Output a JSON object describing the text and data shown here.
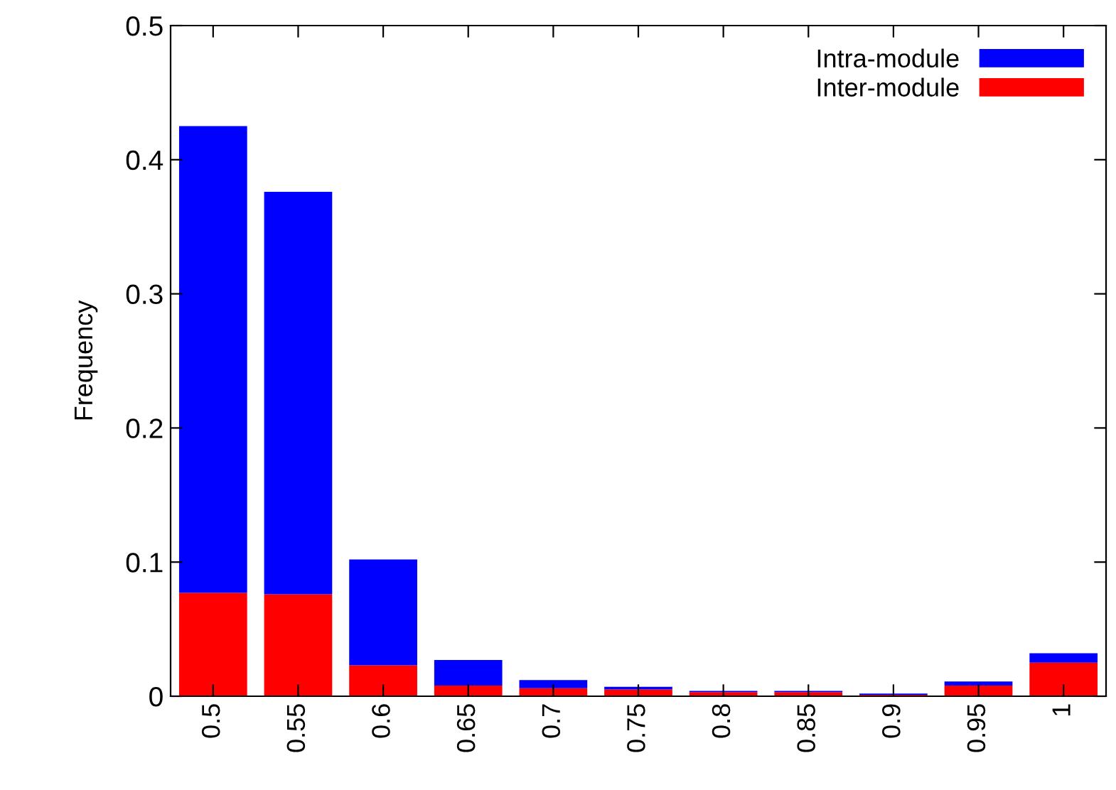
{
  "chart_data": {
    "type": "bar",
    "stacked": true,
    "ylabel": "Frequency",
    "categories": [
      "0.5",
      "0.55",
      "0.6",
      "0.65",
      "0.7",
      "0.75",
      "0.8",
      "0.85",
      "0.9",
      "0.95",
      "1"
    ],
    "series": [
      {
        "name": "Inter-module",
        "color": "#ff0000",
        "values": [
          0.077,
          0.076,
          0.023,
          0.008,
          0.006,
          0.005,
          0.003,
          0.003,
          0.001,
          0.008,
          0.025
        ]
      },
      {
        "name": "Intra-module",
        "color": "#0000ff",
        "values": [
          0.348,
          0.3,
          0.079,
          0.019,
          0.006,
          0.002,
          0.001,
          0.001,
          0.001,
          0.003,
          0.007
        ]
      }
    ],
    "ylim": [
      0,
      0.5
    ],
    "yticks": [
      {
        "value": 0,
        "label": "0"
      },
      0.1,
      0.2,
      0.3,
      0.4,
      0.5
    ],
    "legend": "top right",
    "grid": false
  }
}
